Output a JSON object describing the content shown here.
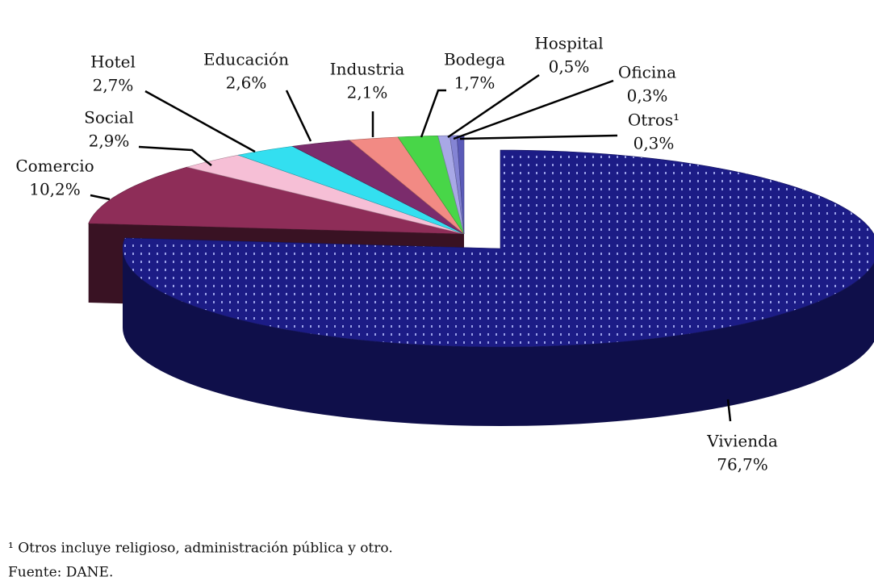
{
  "chart_data": {
    "type": "pie3d",
    "categories": [
      "Vivienda",
      "Comercio",
      "Social",
      "Hotel",
      "Educación",
      "Industria",
      "Bodega",
      "Hospital",
      "Oficina",
      "Otros¹"
    ],
    "values": [
      76.7,
      10.2,
      2.9,
      2.7,
      2.6,
      2.1,
      1.7,
      0.5,
      0.3,
      0.3
    ],
    "value_labels": [
      "76,7%",
      "10,2%",
      "2,9%",
      "2,7%",
      "2,6%",
      "2,1%",
      "1,7%",
      "0,5%",
      "0,3%",
      "0,3%"
    ],
    "colors": [
      "#1c1c86",
      "#8e2d58",
      "#f6bfd6",
      "#33dff0",
      "#7b2c6c",
      "#f28a84",
      "#48d648",
      "#a8a8e6",
      "#8484d4",
      "#5a5ab8"
    ],
    "exploded": [
      "Vivienda"
    ],
    "footnote": "¹ Otros incluye religioso, administración pública y otro.",
    "source": "Fuente: DANE."
  }
}
